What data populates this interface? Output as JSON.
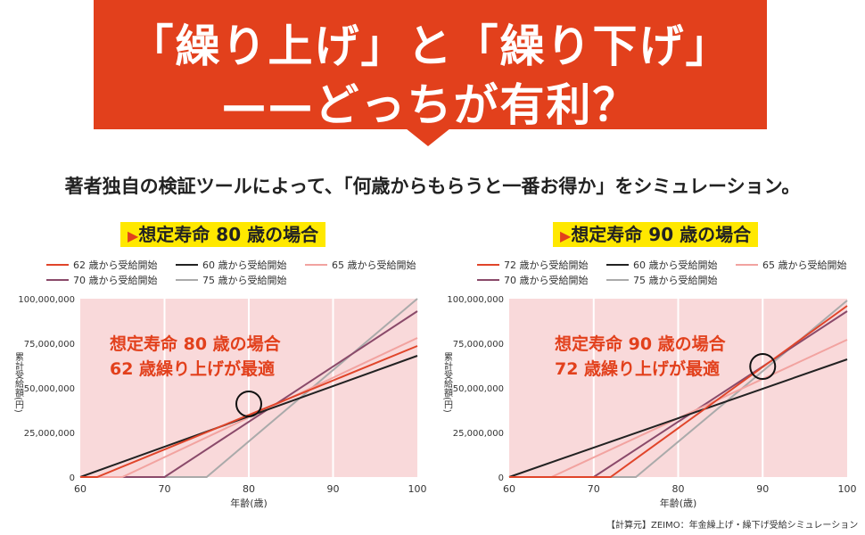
{
  "header": {
    "line1": "「繰り上げ」と「繰り下げ」",
    "line2": "——どっちが有利？"
  },
  "lead": "著者独自の検証ツールによって、「何歳からもらうと一番お得か」をシミュレーション。",
  "credit": "【計算元】ZEIMO：年金繰上げ・繰下げ受給シミュレーション",
  "chart_data": [
    {
      "type": "line",
      "title": "想定寿命 80 歳の場合",
      "annotation": [
        "想定寿命 80 歳の場合",
        "62 歳繰り上げが最適"
      ],
      "highlight": {
        "x": 80,
        "y": 41000000
      },
      "xlabel": "年齢(歳)",
      "ylabel": "累計受給額(円)",
      "xlim": [
        60,
        100
      ],
      "ylim": [
        0,
        100000000
      ],
      "xticks": [
        "60",
        "70",
        "80",
        "90",
        "100"
      ],
      "yticks": [
        "0",
        "25,000,000",
        "50,000,000",
        "75,000,000",
        "100,000,000"
      ],
      "grid": "vertical",
      "legend": "top",
      "series": [
        {
          "name": "62 歳から受給開始",
          "start": 62,
          "value_at_100": 73500000,
          "color": "#e0452a"
        },
        {
          "name": "60 歳から受給開始",
          "start": 60,
          "value_at_100": 68000000,
          "color": "#222222"
        },
        {
          "name": "65 歳から受給開始",
          "start": 65,
          "value_at_100": 78000000,
          "color": "#f2a3a0"
        },
        {
          "name": "70 歳から受給開始",
          "start": 70,
          "value_at_100": 93000000,
          "color": "#8a4a6a"
        },
        {
          "name": "75 歳から受給開始",
          "start": 75,
          "value_at_100": 100000000,
          "color": "#aaaaaa"
        }
      ]
    },
    {
      "type": "line",
      "title": "想定寿命 90 歳の場合",
      "annotation": [
        "想定寿命 90 歳の場合",
        "72 歳繰り上げが最適"
      ],
      "highlight": {
        "x": 90,
        "y": 62000000
      },
      "xlabel": "年齢(歳)",
      "ylabel": "累計受給額(円)",
      "xlim": [
        60,
        100
      ],
      "ylim": [
        0,
        100000000
      ],
      "xticks": [
        "60",
        "70",
        "80",
        "90",
        "100"
      ],
      "yticks": [
        "0",
        "25,000,000",
        "50,000,000",
        "75,000,000",
        "100,000,000"
      ],
      "grid": "vertical",
      "legend": "top",
      "series": [
        {
          "name": "72 歳から受給開始",
          "start": 72,
          "value_at_100": 96000000,
          "color": "#e0452a"
        },
        {
          "name": "60 歳から受給開始",
          "start": 60,
          "value_at_100": 66000000,
          "color": "#222222"
        },
        {
          "name": "65 歳から受給開始",
          "start": 65,
          "value_at_100": 77000000,
          "color": "#f2a3a0"
        },
        {
          "name": "70 歳から受給開始",
          "start": 70,
          "value_at_100": 93000000,
          "color": "#8a4a6a"
        },
        {
          "name": "75 歳から受給開始",
          "start": 75,
          "value_at_100": 99000000,
          "color": "#aaaaaa"
        }
      ]
    }
  ],
  "colors": {
    "banner": "#e2401c",
    "tag": "#ffe800",
    "plot_bg": "#f9d9da"
  }
}
